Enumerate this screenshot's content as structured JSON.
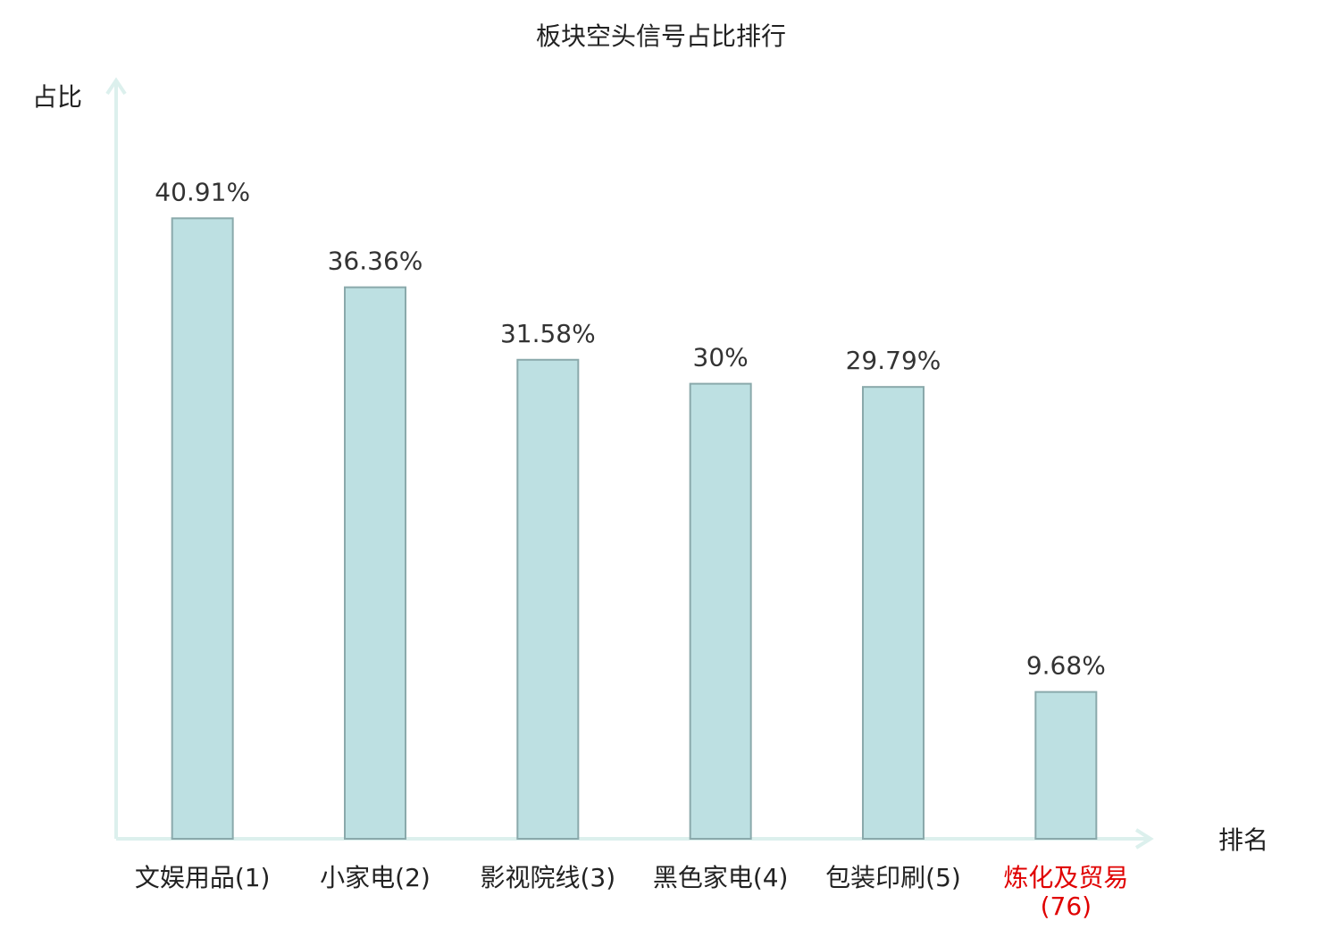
{
  "chart_data": {
    "type": "bar",
    "title": "板块空头信号占比排行",
    "y_label": "占比",
    "x_label": "排名",
    "categories": [
      "文娱用品(1)",
      "小家电(2)",
      "影视院线(3)",
      "黑色家电(4)",
      "包装印刷(5)",
      "炼化及贸易(76)"
    ],
    "values": [
      40.91,
      36.36,
      31.58,
      30,
      29.79,
      9.68
    ],
    "value_labels": [
      "40.91%",
      "36.36%",
      "31.58%",
      "30%",
      "29.79%",
      "9.68%"
    ],
    "color": "#bde0e2",
    "edge_color": "#8aa9ab",
    "category_colors": [
      "#222222",
      "#222222",
      "#222222",
      "#222222",
      "#222222",
      "#e00000"
    ],
    "ylim": [
      0,
      50
    ]
  }
}
